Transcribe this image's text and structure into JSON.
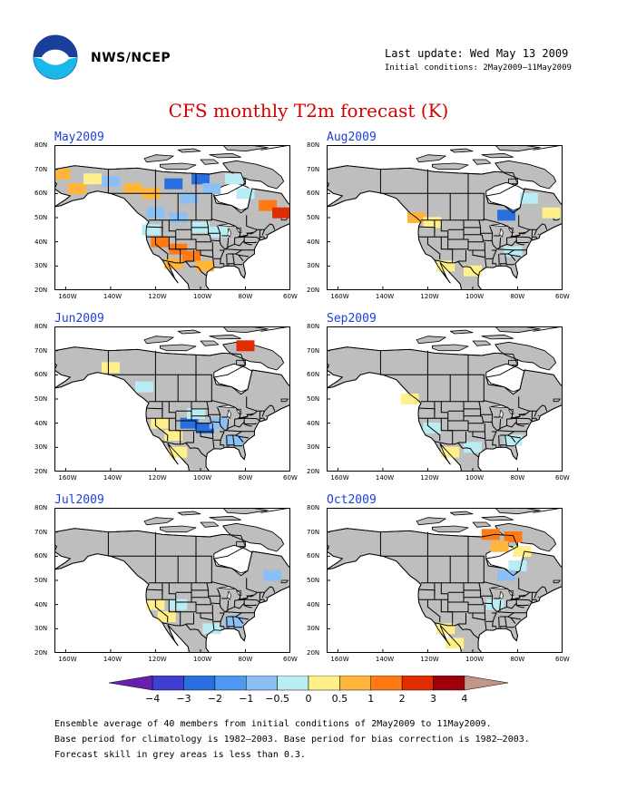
{
  "header": {
    "org": "NWS/NCEP",
    "last_update": "Last update: Wed May 13 2009",
    "initial_conditions": "Initial conditions: 2May2009–11May2009",
    "title": "CFS monthly T2m forecast (K)"
  },
  "colors": {
    "land_grey": "#bebebe",
    "ocean": "#ffffff",
    "title_red": "#d40000",
    "label_blue": "#1f3fd9"
  },
  "axes": {
    "lat_labels": [
      "80N",
      "70N",
      "60N",
      "50N",
      "40N",
      "30N",
      "20N"
    ],
    "lon_labels": [
      "160W",
      "140W",
      "120W",
      "100W",
      "80W",
      "60W"
    ]
  },
  "panels": [
    {
      "label": "May2009",
      "anom": [
        {
          "lon": -162,
          "lat": 68,
          "v": 0.75
        },
        {
          "lon": -155,
          "lat": 62,
          "v": 0.75
        },
        {
          "lon": -148,
          "lat": 66,
          "v": 0.25
        },
        {
          "lon": -140,
          "lat": 65,
          "v": -0.75
        },
        {
          "lon": -130,
          "lat": 62,
          "v": 0.75
        },
        {
          "lon": -122,
          "lat": 60,
          "v": 0.75
        },
        {
          "lon": -112,
          "lat": 64,
          "v": -1.5
        },
        {
          "lon": -100,
          "lat": 66,
          "v": -1.5
        },
        {
          "lon": -105,
          "lat": 58,
          "v": -0.75
        },
        {
          "lon": -95,
          "lat": 62,
          "v": -0.75
        },
        {
          "lon": -85,
          "lat": 66,
          "v": -0.25
        },
        {
          "lon": -80,
          "lat": 60,
          "v": -0.25
        },
        {
          "lon": -70,
          "lat": 55,
          "v": 1.5
        },
        {
          "lon": -64,
          "lat": 52,
          "v": 2.5
        },
        {
          "lon": -120,
          "lat": 52,
          "v": -0.75
        },
        {
          "lon": -110,
          "lat": 50,
          "v": -0.75
        },
        {
          "lon": -118,
          "lat": 40,
          "v": 1.5
        },
        {
          "lon": -110,
          "lat": 37,
          "v": 1.5
        },
        {
          "lon": -104,
          "lat": 34,
          "v": 1.5
        },
        {
          "lon": -112,
          "lat": 31,
          "v": 0.75
        },
        {
          "lon": -98,
          "lat": 30,
          "v": 0.75
        },
        {
          "lon": -122,
          "lat": 45,
          "v": -0.25
        },
        {
          "lon": -100,
          "lat": 46,
          "v": -0.25
        },
        {
          "lon": -92,
          "lat": 44,
          "v": -0.25
        }
      ]
    },
    {
      "label": "Aug2009",
      "anom": [
        {
          "lon": -125,
          "lat": 50,
          "v": 0.75
        },
        {
          "lon": -118,
          "lat": 48,
          "v": 0.25
        },
        {
          "lon": -85,
          "lat": 51,
          "v": -1.5
        },
        {
          "lon": -65,
          "lat": 52,
          "v": 0.25
        },
        {
          "lon": -75,
          "lat": 58,
          "v": -0.25
        },
        {
          "lon": -112,
          "lat": 30,
          "v": 0.25
        },
        {
          "lon": -100,
          "lat": 28,
          "v": 0.25
        },
        {
          "lon": -82,
          "lat": 36,
          "v": -0.25
        }
      ]
    },
    {
      "label": "Jun2009",
      "anom": [
        {
          "lon": -80,
          "lat": 72,
          "v": 2.5
        },
        {
          "lon": -140,
          "lat": 63,
          "v": 0.25
        },
        {
          "lon": -125,
          "lat": 55,
          "v": -0.25
        },
        {
          "lon": -118,
          "lat": 40,
          "v": 0.25
        },
        {
          "lon": -112,
          "lat": 35,
          "v": 0.25
        },
        {
          "lon": -105,
          "lat": 40,
          "v": -1.5
        },
        {
          "lon": -98,
          "lat": 38,
          "v": -1.5
        },
        {
          "lon": -92,
          "lat": 40,
          "v": -0.75
        },
        {
          "lon": -85,
          "lat": 33,
          "v": -0.75
        },
        {
          "lon": -110,
          "lat": 28,
          "v": 0.25
        },
        {
          "lon": -102,
          "lat": 44,
          "v": -0.25
        }
      ]
    },
    {
      "label": "Sep2009",
      "anom": [
        {
          "lon": -128,
          "lat": 50,
          "v": 0.25
        },
        {
          "lon": -118,
          "lat": 38,
          "v": -0.25
        },
        {
          "lon": -100,
          "lat": 30,
          "v": -0.25
        },
        {
          "lon": -110,
          "lat": 28,
          "v": 0.25
        },
        {
          "lon": -82,
          "lat": 33,
          "v": -0.25
        }
      ]
    },
    {
      "label": "Jul2009",
      "anom": [
        {
          "lon": -120,
          "lat": 40,
          "v": 0.25
        },
        {
          "lon": -115,
          "lat": 35,
          "v": 0.25
        },
        {
          "lon": -110,
          "lat": 40,
          "v": -0.25
        },
        {
          "lon": -68,
          "lat": 52,
          "v": -0.75
        },
        {
          "lon": -85,
          "lat": 33,
          "v": -0.75
        },
        {
          "lon": -95,
          "lat": 30,
          "v": -0.25
        }
      ]
    },
    {
      "label": "Oct2009",
      "anom": [
        {
          "lon": -92,
          "lat": 69,
          "v": 1.5
        },
        {
          "lon": -82,
          "lat": 68,
          "v": 1.5
        },
        {
          "lon": -88,
          "lat": 64,
          "v": 0.75
        },
        {
          "lon": -78,
          "lat": 62,
          "v": 0.25
        },
        {
          "lon": -80,
          "lat": 56,
          "v": -0.25
        },
        {
          "lon": -85,
          "lat": 52,
          "v": -0.75
        },
        {
          "lon": -112,
          "lat": 30,
          "v": 0.25
        },
        {
          "lon": -108,
          "lat": 24,
          "v": 0.25
        },
        {
          "lon": -90,
          "lat": 40,
          "v": -0.25
        }
      ]
    }
  ],
  "colorbar": {
    "labels": [
      "−4",
      "−3",
      "−2",
      "−1",
      "−0.5",
      "0",
      "0.5",
      "1",
      "2",
      "3",
      "4"
    ],
    "colors": [
      "#6a1fb0",
      "#3f3fd0",
      "#2a6fe0",
      "#4d98f0",
      "#8cc0f5",
      "#b9ecf3",
      "#fff08c",
      "#ffb53a",
      "#ff7a15",
      "#e02c00",
      "#a0000a",
      "#c39687"
    ]
  },
  "notes": [
    "Ensemble average of 40 members from initial conditions of 2May2009 to 11May2009.",
    "Base period for climatology is 1982–2003. Base period for bias correction is 1982–2003.",
    "Forecast skill in grey areas is less than 0.3."
  ]
}
